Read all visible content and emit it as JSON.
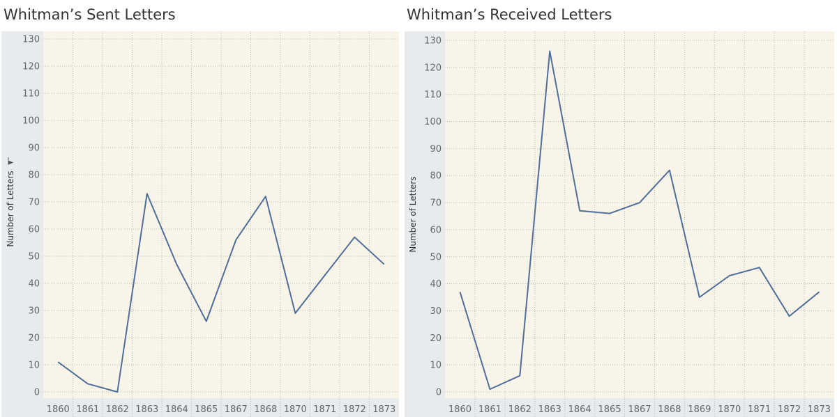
{
  "chart_data": [
    {
      "type": "line",
      "title": "Whitman’s Sent Letters",
      "ylabel": "Number of Letters",
      "ylabel_sort_icon": "sort-descending-icon",
      "xlabel": "",
      "categories": [
        "1860",
        "1861",
        "1862",
        "1863",
        "1864",
        "1865",
        "1867",
        "1868",
        "1870",
        "1871",
        "1872",
        "1873"
      ],
      "values": [
        11,
        3,
        0,
        73,
        47,
        26,
        56,
        72,
        29,
        43,
        57,
        47
      ],
      "yticks": [
        0,
        10,
        20,
        30,
        40,
        50,
        60,
        70,
        80,
        90,
        100,
        110,
        120,
        130
      ],
      "ylim": [
        0,
        130
      ],
      "grid": true,
      "line_color": "#4e6f99",
      "plot_background": "#f9f4e8",
      "axis_background": "#e7ebee"
    },
    {
      "type": "line",
      "title": "Whitman’s Received Letters",
      "ylabel": "Number of Letters",
      "xlabel": "",
      "categories": [
        "1860",
        "1861",
        "1862",
        "1863",
        "1864",
        "1865",
        "1867",
        "1868",
        "1869",
        "1870",
        "1871",
        "1872",
        "1873"
      ],
      "values": [
        37,
        1,
        6,
        126,
        67,
        66,
        70,
        82,
        35,
        43,
        46,
        28,
        37
      ],
      "yticks": [
        0,
        10,
        20,
        30,
        40,
        50,
        60,
        70,
        80,
        90,
        100,
        110,
        120,
        130
      ],
      "ylim": [
        0,
        130
      ],
      "grid": true,
      "line_color": "#4e6f99",
      "plot_background": "#f9f4e8",
      "axis_background": "#e7ebee"
    }
  ]
}
